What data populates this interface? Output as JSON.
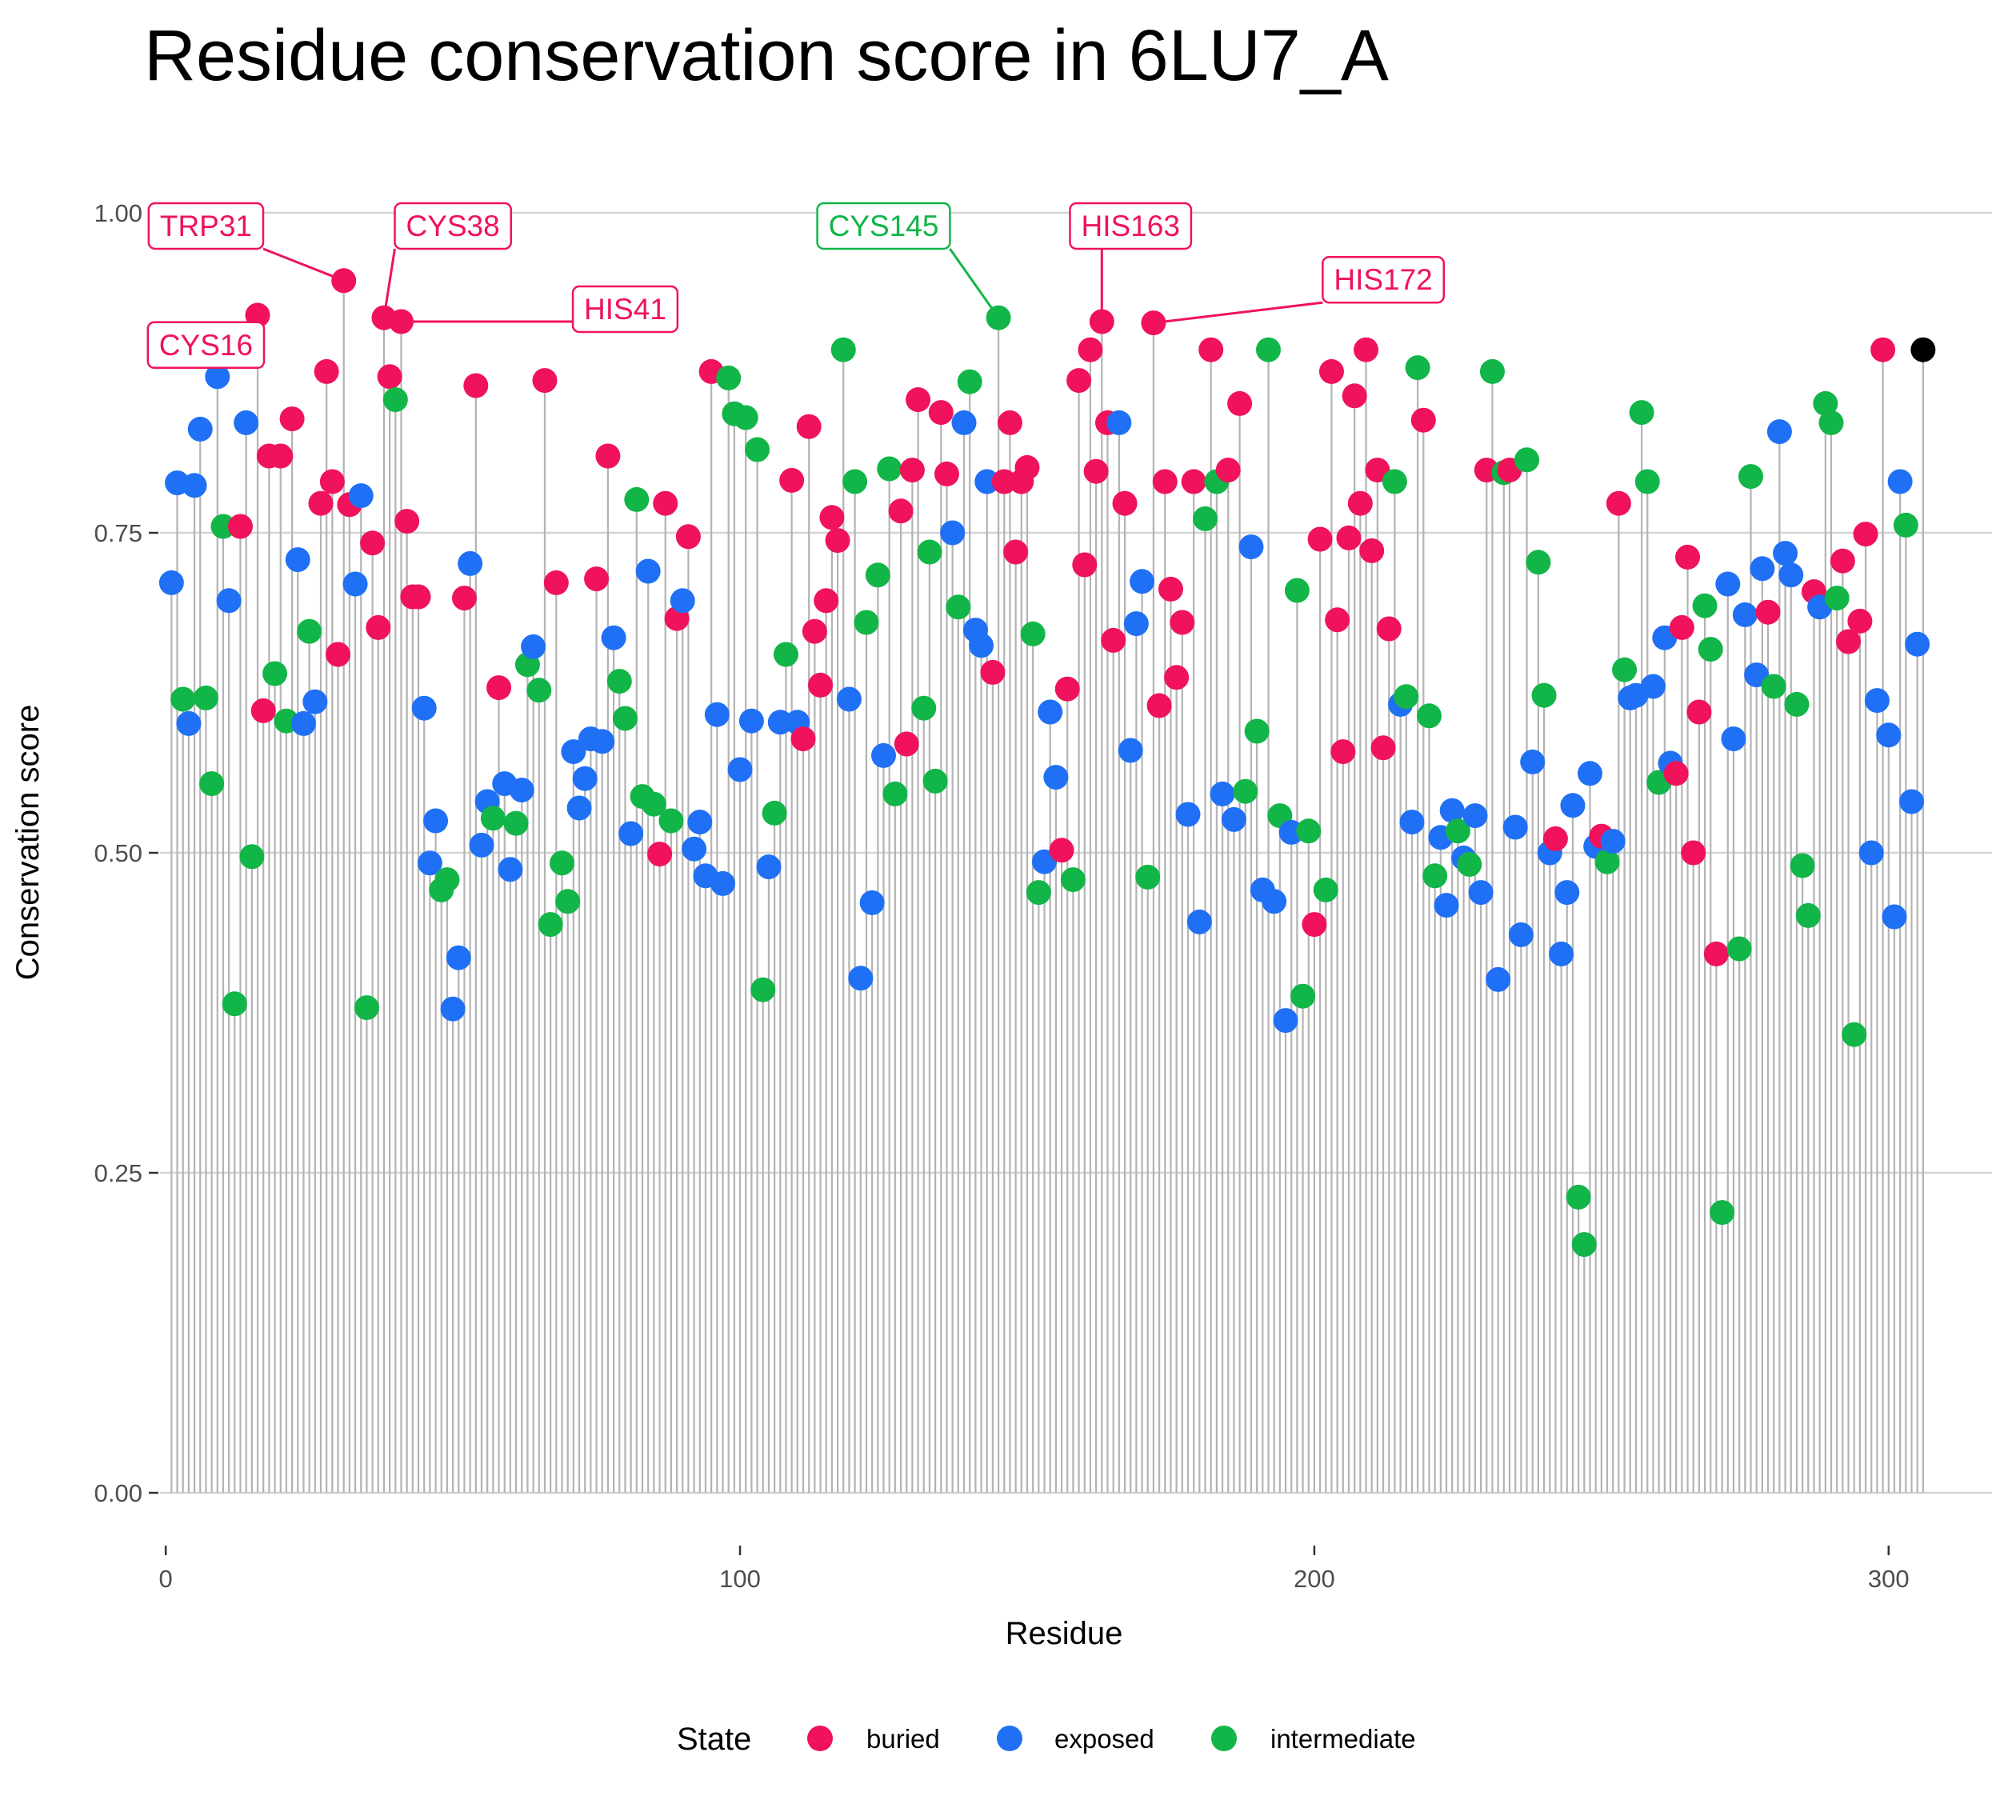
{
  "chart_data": {
    "type": "lollipop",
    "title": "Residue conservation score in 6LU7_A",
    "xlabel": "Residue",
    "ylabel": "Conservation score",
    "xlim": [
      -1,
      318
    ],
    "ylim": [
      -0.04,
      1.06
    ],
    "x_ticks": [
      0,
      100,
      200,
      300
    ],
    "y_ticks": [
      0,
      0.25,
      0.5,
      0.75,
      1.0
    ],
    "y_tick_labels": [
      "0.00",
      "0.25",
      "0.50",
      "0.75",
      "1.00"
    ],
    "grid": true,
    "legend": {
      "title": "State",
      "position": "bottom",
      "entries": [
        {
          "key": "buried",
          "label": "buried",
          "color": "#F0125B"
        },
        {
          "key": "exposed",
          "label": "exposed",
          "color": "#1F70F5"
        },
        {
          "key": "intermediate",
          "label": "intermediate",
          "color": "#12B547"
        }
      ]
    },
    "stem_color": "#b3b3b3",
    "scores": [
      0.711,
      0.789,
      0.62,
      0.601,
      0.787,
      0.831,
      0.621,
      0.554,
      0.872,
      0.755,
      0.697,
      0.382,
      0.755,
      0.836,
      0.497,
      0.92,
      0.611,
      0.81,
      0.64,
      0.81,
      0.603,
      0.839,
      0.729,
      0.601,
      0.673,
      0.618,
      0.773,
      0.876,
      0.79,
      0.655,
      0.947,
      0.772,
      0.71,
      0.779,
      0.379,
      0.742,
      0.676,
      0.918,
      0.872,
      0.854,
      0.915,
      0.759,
      0.7,
      0.7,
      0.613,
      0.492,
      0.525,
      0.471,
      0.479,
      0.378,
      0.418,
      0.699,
      0.726,
      0.865,
      0.506,
      0.54,
      0.527,
      0.629,
      0.554,
      0.487,
      0.523,
      0.549,
      0.647,
      0.661,
      0.627,
      0.869,
      0.444,
      0.711,
      0.492,
      0.462,
      0.579,
      0.535,
      0.558,
      0.589,
      0.714,
      0.587,
      0.81,
      0.668,
      0.634,
      0.605,
      0.515,
      0.776,
      0.544,
      0.72,
      0.538,
      0.499,
      0.773,
      0.525,
      0.683,
      0.697,
      0.747,
      0.503,
      0.524,
      0.482,
      0.876,
      0.608,
      0.476,
      0.871,
      0.843,
      0.565,
      0.84,
      0.603,
      0.815,
      0.393,
      0.489,
      0.531,
      0.602,
      0.655,
      0.791,
      0.602,
      0.589,
      0.833,
      0.673,
      0.631,
      0.697,
      0.762,
      0.744,
      0.893,
      0.62,
      0.79,
      0.402,
      0.68,
      0.461,
      0.717,
      0.576,
      0.8,
      0.546,
      0.767,
      0.585,
      0.799,
      0.854,
      0.613,
      0.735,
      0.556,
      0.844,
      0.796,
      0.75,
      0.692,
      0.836,
      0.868,
      0.674,
      0.662,
      0.79,
      0.641,
      0.918,
      0.79,
      0.836,
      0.735,
      0.79,
      0.801,
      0.671,
      0.469,
      0.493,
      0.61,
      0.559,
      0.502,
      0.628,
      0.479,
      0.869,
      0.725,
      0.893,
      0.798,
      0.915,
      0.836,
      0.666,
      0.836,
      0.773,
      0.58,
      0.679,
      0.712,
      0.481,
      0.914,
      0.615,
      0.79,
      0.706,
      0.637,
      0.68,
      0.53,
      0.79,
      0.446,
      0.761,
      0.893,
      0.79,
      0.546,
      0.799,
      0.526,
      0.851,
      0.548,
      0.739,
      0.595,
      0.471,
      0.893,
      0.462,
      0.529,
      0.369,
      0.516,
      0.705,
      0.388,
      0.517,
      0.444,
      0.745,
      0.471,
      0.876,
      0.682,
      0.579,
      0.746,
      0.857,
      0.773,
      0.893,
      0.736,
      0.799,
      0.582,
      0.675,
      0.79,
      0.616,
      0.622,
      0.524,
      0.879,
      0.838,
      0.607,
      0.482,
      0.512,
      0.459,
      0.533,
      0.517,
      0.496,
      0.491,
      0.529,
      0.469,
      0.799,
      0.876,
      0.401,
      0.797,
      0.799,
      0.52,
      0.436,
      0.807,
      0.571,
      0.727,
      0.623,
      0.5,
      0.511,
      0.421,
      0.469,
      0.537,
      0.231,
      0.194,
      0.562,
      0.505,
      0.513,
      0.493,
      0.509,
      0.773,
      0.643,
      0.621,
      0.623,
      0.844,
      0.79,
      0.63,
      0.555,
      0.668,
      0.57,
      0.562,
      0.676,
      0.731,
      0.5,
      0.61,
      0.693,
      0.659,
      0.421,
      0.219,
      0.71,
      0.589,
      0.425,
      0.686,
      0.794,
      0.639,
      0.722,
      0.688,
      0.63,
      0.829,
      0.734,
      0.717,
      0.616,
      0.49,
      0.451,
      0.704,
      0.692,
      0.851,
      0.836,
      0.699,
      0.728,
      0.665,
      0.358,
      0.681,
      0.749,
      0.5,
      0.619,
      0.893,
      0.592,
      0.45,
      0.79,
      0.756,
      0.54,
      0.663,
      0.893
    ],
    "states": [
      "exposed",
      "exposed",
      "intermediate",
      "exposed",
      "exposed",
      "exposed",
      "intermediate",
      "intermediate",
      "exposed",
      "intermediate",
      "exposed",
      "intermediate",
      "buried",
      "exposed",
      "intermediate",
      "buried",
      "buried",
      "buried",
      "intermediate",
      "buried",
      "intermediate",
      "buried",
      "exposed",
      "exposed",
      "intermediate",
      "exposed",
      "buried",
      "buried",
      "buried",
      "buried",
      "buried",
      "buried",
      "exposed",
      "exposed",
      "intermediate",
      "buried",
      "buried",
      "buried",
      "buried",
      "intermediate",
      "buried",
      "buried",
      "buried",
      "buried",
      "exposed",
      "exposed",
      "exposed",
      "intermediate",
      "intermediate",
      "exposed",
      "exposed",
      "buried",
      "exposed",
      "buried",
      "exposed",
      "exposed",
      "intermediate",
      "buried",
      "exposed",
      "exposed",
      "intermediate",
      "exposed",
      "intermediate",
      "exposed",
      "intermediate",
      "buried",
      "intermediate",
      "buried",
      "intermediate",
      "intermediate",
      "exposed",
      "exposed",
      "exposed",
      "exposed",
      "buried",
      "exposed",
      "buried",
      "exposed",
      "intermediate",
      "intermediate",
      "exposed",
      "intermediate",
      "intermediate",
      "exposed",
      "intermediate",
      "buried",
      "buried",
      "intermediate",
      "buried",
      "exposed",
      "buried",
      "exposed",
      "exposed",
      "exposed",
      "buried",
      "exposed",
      "exposed",
      "intermediate",
      "intermediate",
      "exposed",
      "intermediate",
      "exposed",
      "intermediate",
      "intermediate",
      "exposed",
      "intermediate",
      "exposed",
      "intermediate",
      "buried",
      "exposed",
      "buried",
      "buried",
      "buried",
      "buried",
      "buried",
      "buried",
      "buried",
      "intermediate",
      "exposed",
      "intermediate",
      "exposed",
      "intermediate",
      "exposed",
      "intermediate",
      "exposed",
      "intermediate",
      "intermediate",
      "buried",
      "buried",
      "buried",
      "buried",
      "intermediate",
      "intermediate",
      "intermediate",
      "buried",
      "buried",
      "exposed",
      "intermediate",
      "exposed",
      "intermediate",
      "exposed",
      "exposed",
      "exposed",
      "buried",
      "intermediate",
      "buried",
      "buried",
      "buried",
      "buried",
      "buried",
      "intermediate",
      "intermediate",
      "exposed",
      "exposed",
      "exposed",
      "buried",
      "buried",
      "intermediate",
      "buried",
      "buried",
      "buried",
      "buried",
      "buried",
      "buried",
      "buried",
      "exposed",
      "buried",
      "exposed",
      "exposed",
      "exposed",
      "intermediate",
      "buried",
      "buried",
      "buried",
      "buried",
      "buried",
      "buried",
      "exposed",
      "buried",
      "exposed",
      "intermediate",
      "buried",
      "intermediate",
      "exposed",
      "buried",
      "exposed",
      "buried",
      "intermediate",
      "exposed",
      "intermediate",
      "exposed",
      "intermediate",
      "exposed",
      "intermediate",
      "exposed",
      "exposed",
      "intermediate",
      "intermediate",
      "intermediate",
      "buried",
      "buried",
      "intermediate",
      "buried",
      "buried",
      "buried",
      "buried",
      "buried",
      "buried",
      "buried",
      "buried",
      "buried",
      "buried",
      "buried",
      "intermediate",
      "exposed",
      "intermediate",
      "exposed",
      "intermediate",
      "buried",
      "intermediate",
      "intermediate",
      "exposed",
      "exposed",
      "exposed",
      "intermediate",
      "exposed",
      "intermediate",
      "exposed",
      "exposed",
      "buried",
      "intermediate",
      "exposed",
      "intermediate",
      "buried",
      "exposed",
      "exposed",
      "intermediate",
      "exposed",
      "intermediate",
      "intermediate",
      "exposed",
      "buried",
      "exposed",
      "exposed",
      "exposed",
      "intermediate",
      "intermediate",
      "exposed",
      "exposed",
      "buried",
      "intermediate",
      "exposed",
      "buried",
      "intermediate",
      "exposed",
      "exposed",
      "intermediate",
      "intermediate",
      "exposed",
      "intermediate",
      "exposed",
      "exposed",
      "buried",
      "buried",
      "buried",
      "buried",
      "buried",
      "intermediate",
      "intermediate",
      "buried",
      "intermediate",
      "exposed",
      "exposed",
      "intermediate",
      "exposed",
      "intermediate",
      "exposed",
      "exposed",
      "buried",
      "intermediate",
      "exposed",
      "exposed",
      "exposed",
      "intermediate",
      "intermediate",
      "intermediate",
      "buried",
      "exposed",
      "intermediate",
      "intermediate",
      "intermediate",
      "buried",
      "buried",
      "intermediate",
      "buried",
      "buried",
      "exposed",
      "exposed",
      "buried",
      "exposed",
      "exposed",
      "exposed",
      "intermediate",
      "exposed",
      "exposed"
    ],
    "callouts": [
      {
        "label": "TRP31",
        "residue": 31,
        "state": "buried",
        "label_x": 7,
        "label_y": 0.99
      },
      {
        "label": "CYS16",
        "residue": 16,
        "state": "buried",
        "label_x": 7,
        "label_y": 0.897
      },
      {
        "label": "CYS38",
        "residue": 38,
        "state": "buried",
        "label_x": 50,
        "label_y": 0.99
      },
      {
        "label": "HIS41",
        "residue": 41,
        "state": "buried",
        "label_x": 80,
        "label_y": 0.925
      },
      {
        "label": "CYS145",
        "residue": 145,
        "state": "intermediate",
        "label_x": 125,
        "label_y": 0.99
      },
      {
        "label": "HIS163",
        "residue": 163,
        "state": "buried",
        "label_x": 168,
        "label_y": 0.99
      },
      {
        "label": "HIS172",
        "residue": 172,
        "state": "buried",
        "label_x": 212,
        "label_y": 0.948
      }
    ]
  }
}
